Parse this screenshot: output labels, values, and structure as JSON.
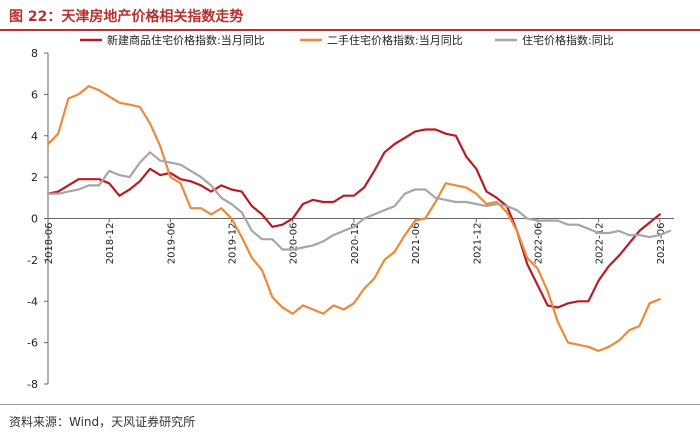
{
  "title": "图 22：天津房地产价格相关指数走势",
  "source": "资料来源：Wind，天风证券研究所",
  "chart_data": {
    "type": "line",
    "title": "",
    "xlabel": "",
    "ylabel": "",
    "ylim": [
      -8,
      8
    ],
    "y_ticks": [
      8,
      6,
      4,
      2,
      0,
      -2,
      -4,
      -6,
      -8
    ],
    "x_tick_labels": [
      "2018-06",
      "2018-12",
      "2019-06",
      "2019-12",
      "2020-06",
      "2020-12",
      "2021-06",
      "2021-12",
      "2022-06",
      "2022-12",
      "2023-06"
    ],
    "x": [
      "2018-06",
      "2018-07",
      "2018-08",
      "2018-09",
      "2018-10",
      "2018-11",
      "2018-12",
      "2019-01",
      "2019-02",
      "2019-03",
      "2019-04",
      "2019-05",
      "2019-06",
      "2019-07",
      "2019-08",
      "2019-09",
      "2019-10",
      "2019-11",
      "2019-12",
      "2020-01",
      "2020-02",
      "2020-03",
      "2020-04",
      "2020-05",
      "2020-06",
      "2020-07",
      "2020-08",
      "2020-09",
      "2020-10",
      "2020-11",
      "2020-12",
      "2021-01",
      "2021-02",
      "2021-03",
      "2021-04",
      "2021-05",
      "2021-06",
      "2021-07",
      "2021-08",
      "2021-09",
      "2021-10",
      "2021-11",
      "2021-12",
      "2022-01",
      "2022-02",
      "2022-03",
      "2022-04",
      "2022-05",
      "2022-06",
      "2022-07",
      "2022-08",
      "2022-09",
      "2022-10",
      "2022-11",
      "2022-12",
      "2023-01",
      "2023-02",
      "2023-03",
      "2023-04",
      "2023-05",
      "2023-06",
      "2023-07"
    ],
    "legend_position": "top",
    "series": [
      {
        "name": "新建商品住宅价格指数:当月同比",
        "color": "#b81c22",
        "values": [
          1.2,
          1.3,
          1.6,
          1.9,
          1.9,
          1.9,
          1.7,
          1.1,
          1.4,
          1.8,
          2.4,
          2.1,
          2.2,
          1.9,
          1.8,
          1.6,
          1.3,
          1.6,
          1.4,
          1.3,
          0.6,
          0.2,
          -0.4,
          -0.3,
          0.0,
          0.7,
          0.9,
          0.8,
          0.8,
          1.1,
          1.1,
          1.5,
          2.3,
          3.2,
          3.6,
          3.9,
          4.2,
          4.3,
          4.3,
          4.1,
          4.0,
          3.0,
          2.4,
          1.3,
          1.0,
          0.6,
          -0.6,
          -2.2,
          -3.2,
          -4.2,
          -4.3,
          -4.1,
          -4.0,
          -4.0,
          -3.0,
          -2.3,
          -1.8,
          -1.2,
          -0.6,
          -0.2,
          0.2,
          null
        ]
      },
      {
        "name": "二手住宅价格指数:当月同比",
        "color": "#ec8a3a",
        "values": [
          3.6,
          4.1,
          5.8,
          6.0,
          6.4,
          6.2,
          5.9,
          5.6,
          5.5,
          5.4,
          4.6,
          3.5,
          2.0,
          1.7,
          0.5,
          0.5,
          0.2,
          0.5,
          0.0,
          -0.9,
          -1.9,
          -2.5,
          -3.8,
          -4.3,
          -4.6,
          -4.2,
          -4.4,
          -4.6,
          -4.2,
          -4.4,
          -4.1,
          -3.4,
          -2.9,
          -2.0,
          -1.6,
          -0.8,
          -0.1,
          0.0,
          0.8,
          1.7,
          1.6,
          1.5,
          1.2,
          0.7,
          0.8,
          0.3,
          -0.6,
          -1.9,
          -2.4,
          -3.5,
          -5.0,
          -6.0,
          -6.1,
          -6.2,
          -6.4,
          -6.2,
          -5.9,
          -5.4,
          -5.2,
          -4.1,
          -3.9,
          null
        ]
      },
      {
        "name": "住宅价格指数:同比",
        "color": "#a6a6a6",
        "values": [
          1.2,
          1.2,
          1.3,
          1.4,
          1.6,
          1.6,
          2.3,
          2.1,
          2.0,
          2.7,
          3.2,
          2.8,
          2.7,
          2.6,
          2.3,
          2.0,
          1.6,
          1.0,
          0.7,
          0.3,
          -0.6,
          -1.0,
          -1.0,
          -1.5,
          -1.5,
          -1.4,
          -1.3,
          -1.1,
          -0.8,
          -0.6,
          -0.4,
          0.0,
          0.2,
          0.4,
          0.6,
          1.2,
          1.4,
          1.4,
          1.0,
          0.9,
          0.8,
          0.8,
          0.7,
          0.6,
          0.7,
          0.6,
          0.4,
          0.0,
          -0.1,
          -0.1,
          -0.1,
          -0.3,
          -0.3,
          -0.5,
          -0.7,
          -0.7,
          -0.6,
          -0.8,
          -0.8,
          -0.9,
          -0.8,
          -0.6
        ]
      }
    ]
  }
}
